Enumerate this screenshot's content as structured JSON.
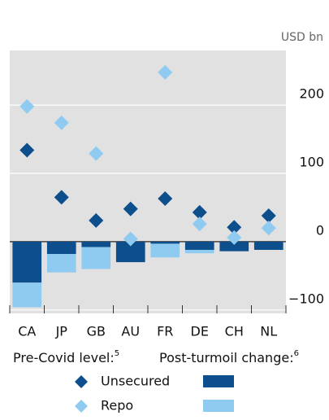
{
  "chart_data": {
    "type": "dot_bar",
    "unit": "USD bn",
    "categories": [
      "CA",
      "JP",
      "GB",
      "AU",
      "FR",
      "DE",
      "CH",
      "NL"
    ],
    "series": [
      {
        "name": "Unsecured",
        "color": "#0c4f8c",
        "values": [
          134,
          65,
          31,
          48,
          63,
          43,
          21,
          38
        ],
        "change": [
          -60,
          -18,
          -8,
          -30,
          -3,
          -12,
          -14,
          -12
        ]
      },
      {
        "name": "Repo",
        "color": "#8fcbf0",
        "values": [
          198,
          174,
          129,
          4,
          248,
          26,
          6,
          20
        ],
        "change": [
          -36,
          -27,
          -32,
          0,
          -20,
          -5,
          0,
          0
        ]
      }
    ],
    "legend_titles": [
      {
        "text": "Pre-Covid level:",
        "note": "5"
      },
      {
        "text": "Post-turmoil change:",
        "note": "6"
      }
    ],
    "ylim": [
      -105,
      280
    ],
    "yticks": [
      {
        "value": -100,
        "label": "−100"
      },
      0,
      100,
      200
    ],
    "grid": true
  }
}
